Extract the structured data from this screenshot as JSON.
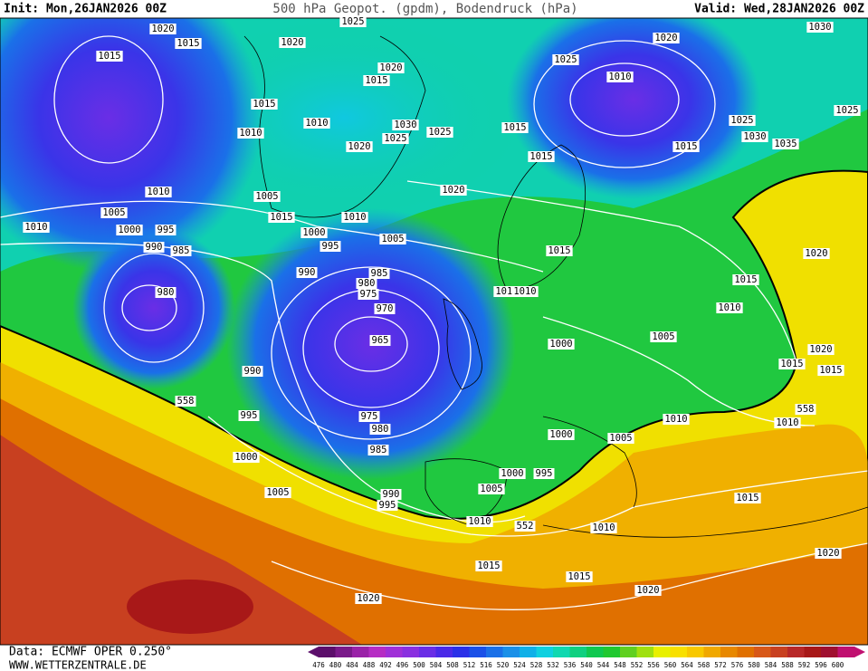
{
  "header": {
    "init": "Init: Mon,26JAN2026 00Z",
    "title": "500 hPa Geopot. (gpdm), Bodendruck (hPa)",
    "valid": "Valid: Wed,28JAN2026 00Z"
  },
  "footer": {
    "source": "Data: ECMWF OPER 0.250°",
    "website": "WWW.WETTERZENTRALE.DE"
  },
  "colorbar": {
    "levels": [
      476,
      480,
      484,
      488,
      492,
      496,
      500,
      504,
      508,
      512,
      516,
      520,
      524,
      528,
      532,
      536,
      540,
      544,
      548,
      552,
      556,
      560,
      564,
      568,
      572,
      576,
      580,
      584,
      588,
      592,
      596,
      600
    ],
    "colors": [
      "#5c0f6b",
      "#7a1a8a",
      "#9a22a8",
      "#b62dc4",
      "#a030d8",
      "#8a30e0",
      "#6a2ee6",
      "#4a2ae8",
      "#2a30e8",
      "#1a50e8",
      "#1a70e8",
      "#1a90e8",
      "#10b0e8",
      "#10d0e0",
      "#10d8b0",
      "#10d080",
      "#10c850",
      "#20c830",
      "#60d020",
      "#a0e010",
      "#e8f000",
      "#f8e000",
      "#f8c800",
      "#f0a800",
      "#e88800",
      "#e07000",
      "#d85818",
      "#c84020",
      "#b82828",
      "#a81818",
      "#a01030",
      "#c01070"
    ]
  },
  "isobar_labels": [
    1020,
    1015,
    1015,
    1025,
    1020,
    1020,
    1015,
    1015,
    1010,
    1010,
    1030,
    1025,
    1025,
    1020,
    1020,
    1010,
    1005,
    1005,
    1015,
    1010,
    1000,
    1010,
    995,
    1000,
    995,
    1005,
    990,
    985,
    990,
    985,
    980,
    975,
    980,
    970,
    965,
    990,
    995,
    1000,
    1005,
    975,
    980,
    985,
    990,
    995,
    1010,
    1000,
    1000,
    995,
    1005,
    1005,
    1010,
    1015,
    1015,
    1020,
    1020,
    1010,
    1015,
    1020,
    1010,
    1015,
    1015,
    1020,
    1010,
    1015,
    1020,
    1005,
    1000,
    1015,
    1010,
    1010,
    1015,
    1015,
    1025,
    1020,
    1010,
    1015,
    1025,
    1030,
    1035,
    1030,
    1025,
    558,
    552,
    558
  ]
}
